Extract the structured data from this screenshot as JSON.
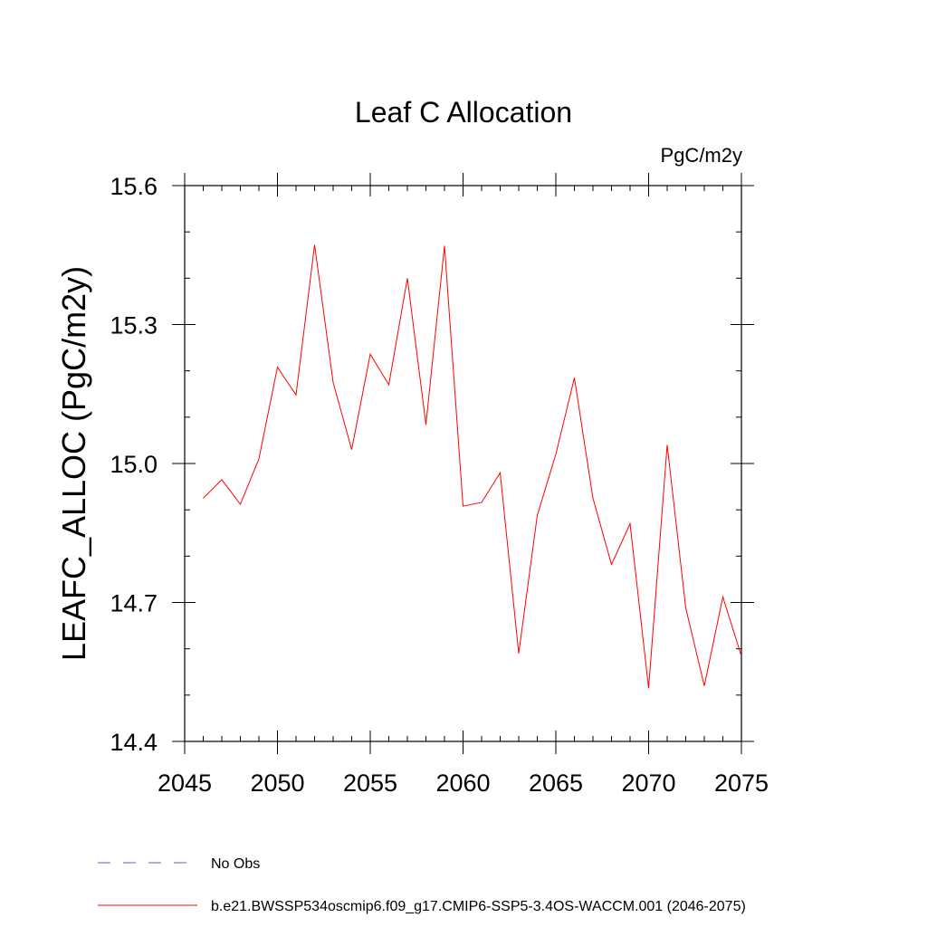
{
  "chart_data": {
    "type": "line",
    "title": "Leaf C Allocation",
    "units": "PgC/m2y",
    "xlabel": "",
    "ylabel": "LEAFC_ALLOC  (PgC/m2y)",
    "xlim": [
      2045,
      2075
    ],
    "ylim": [
      14.4,
      15.6
    ],
    "x_ticks": [
      2045,
      2050,
      2055,
      2060,
      2065,
      2070,
      2075
    ],
    "y_ticks": [
      "14.4",
      "14.7",
      "15.0",
      "15.3",
      "15.6"
    ],
    "x_minor_step": 1,
    "y_minor_step": 0.1,
    "grid": false,
    "series": [
      {
        "name": "b.e21.BWSSP534oscmip6.f09_g17.CMIP6-SSP5-3.4OS-WACCM.001 (2046-2075)",
        "color": "#ff0000",
        "style": "solid",
        "x": [
          2046,
          2047,
          2048,
          2049,
          2050,
          2051,
          2052,
          2053,
          2054,
          2055,
          2056,
          2057,
          2058,
          2059,
          2060,
          2061,
          2062,
          2063,
          2064,
          2065,
          2066,
          2067,
          2068,
          2069,
          2070,
          2071,
          2072,
          2073,
          2074,
          2075
        ],
        "y": [
          14.925,
          14.965,
          14.912,
          15.01,
          15.208,
          15.148,
          15.472,
          15.175,
          15.03,
          15.236,
          15.17,
          15.4,
          15.084,
          15.47,
          14.908,
          14.916,
          14.98,
          14.59,
          14.888,
          15.02,
          15.185,
          14.925,
          14.782,
          14.87,
          14.515,
          15.04,
          14.688,
          14.52,
          14.712,
          14.584
        ]
      }
    ],
    "legend": [
      {
        "label": "No Obs",
        "color": "#6a5acd",
        "style": "dashed"
      },
      {
        "label": "b.e21.BWSSP534oscmip6.f09_g17.CMIP6-SSP5-3.4OS-WACCM.001 (2046-2075)",
        "color": "#ff0000",
        "style": "solid"
      }
    ],
    "legend_position": "bottom-left"
  }
}
